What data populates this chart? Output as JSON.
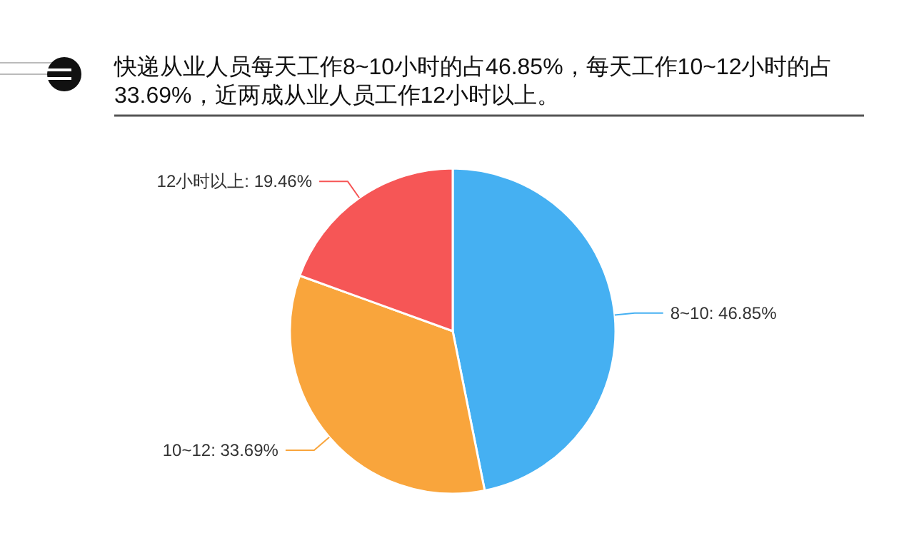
{
  "chart_data": {
    "type": "pie",
    "title": "快递从业人员每天工作8~10小时的占46.85%，每天工作10~12小时的占33.69%，近两成从业人员工作12小时以上。",
    "categories": [
      "8~10",
      "10~12",
      "12小时以上"
    ],
    "values": [
      46.85,
      33.69,
      19.46
    ],
    "value_labels": [
      "46.85%",
      "33.69%",
      "19.46%"
    ],
    "colors": [
      "#45b0f2",
      "#f9a53c",
      "#f65656"
    ],
    "legend": false
  }
}
